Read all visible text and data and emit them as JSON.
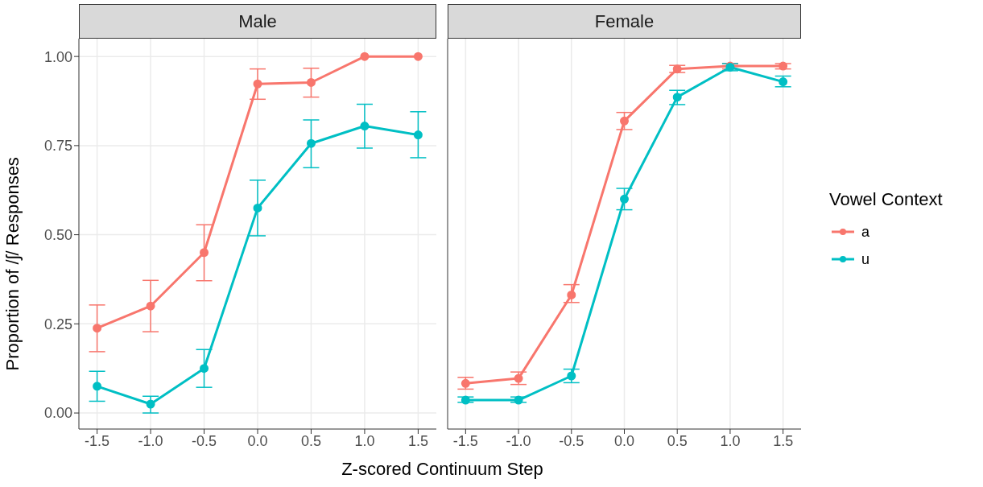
{
  "chart_data": [
    {
      "type": "line",
      "title": "Male",
      "xlabel": "Z-scored Continuum Step",
      "ylabel": "Proportion of /ʃ/ Responses",
      "x": [
        -1.5,
        -1,
        -0.5,
        0,
        0.5,
        1,
        1.5
      ],
      "xlim": [
        -1.67,
        1.67
      ],
      "ylim": [
        -0.045,
        1.05
      ],
      "xticks": [
        -1.5,
        {
          "value": -1,
          "label": "-1.0"
        },
        -0.5,
        {
          "value": 0,
          "label": "0.0"
        },
        0.5,
        {
          "value": 1,
          "label": "1.0"
        },
        1.5
      ],
      "yticks": [
        {
          "value": 0,
          "label": "0.00"
        },
        {
          "value": 0.25,
          "label": "0.25"
        },
        {
          "value": 0.5,
          "label": "0.50"
        },
        {
          "value": 0.75,
          "label": "0.75"
        },
        {
          "value": 1,
          "label": "1.00"
        }
      ],
      "grid": true,
      "marker": "circle",
      "line_style": "solid",
      "series": [
        {
          "color": "#f8766d",
          "values": [
            0.238,
            0.3,
            0.45,
            0.923,
            0.927,
            1.0,
            1.0
          ],
          "errors": [
            [
              0.172,
              0.303
            ],
            [
              0.228,
              0.372
            ],
            [
              0.371,
              0.528
            ],
            [
              0.88,
              0.965
            ],
            [
              0.886,
              0.967
            ],
            null,
            null
          ]
        },
        {
          "color": "#00bfc4",
          "values": [
            0.075,
            0.025,
            0.125,
            0.575,
            0.756,
            0.805,
            0.78
          ],
          "errors": [
            [
              0.033,
              0.117
            ],
            [
              0.0,
              0.047
            ],
            [
              0.072,
              0.178
            ],
            [
              0.497,
              0.653
            ],
            [
              0.688,
              0.822
            ],
            [
              0.743,
              0.866
            ],
            [
              0.716,
              0.845
            ]
          ]
        }
      ]
    },
    {
      "type": "line",
      "title": "Female",
      "x": [
        -1.5,
        -1,
        -0.5,
        0,
        0.5,
        1,
        1.5
      ],
      "xlim": [
        -1.67,
        1.67
      ],
      "ylim": [
        -0.045,
        1.05
      ],
      "xticks": [
        -1.5,
        {
          "value": -1,
          "label": "-1.0"
        },
        -0.5,
        {
          "value": 0,
          "label": "0.0"
        },
        0.5,
        {
          "value": 1,
          "label": "1.0"
        },
        1.5
      ],
      "yticks": [
        {
          "value": 0,
          "label": null
        },
        {
          "value": 0.25,
          "label": null
        },
        {
          "value": 0.5,
          "label": null
        },
        {
          "value": 0.75,
          "label": null
        },
        {
          "value": 1,
          "label": null
        }
      ],
      "tick_labels": "x",
      "grid": true,
      "marker": "circle",
      "line_style": "solid",
      "legend": "right",
      "legend_title": "Vowel Context",
      "series": [
        {
          "name": "a",
          "color": "#f8766d",
          "values": [
            0.083,
            0.097,
            0.331,
            0.819,
            0.965,
            0.973,
            0.973
          ],
          "errors": [
            [
              0.067,
              0.1
            ],
            [
              0.08,
              0.115
            ],
            [
              0.31,
              0.36
            ],
            [
              0.795,
              0.843
            ],
            [
              0.955,
              0.975
            ],
            [
              0.965,
              0.98
            ],
            [
              0.965,
              0.98
            ]
          ]
        },
        {
          "name": "u",
          "color": "#00bfc4",
          "values": [
            0.036,
            0.036,
            0.104,
            0.6,
            0.886,
            0.97,
            0.929
          ],
          "errors": [
            [
              0.03,
              0.045
            ],
            [
              0.03,
              0.045
            ],
            [
              0.085,
              0.123
            ],
            [
              0.57,
              0.63
            ],
            [
              0.865,
              0.905
            ],
            [
              0.96,
              0.98
            ],
            [
              0.915,
              0.945
            ]
          ]
        }
      ]
    }
  ]
}
